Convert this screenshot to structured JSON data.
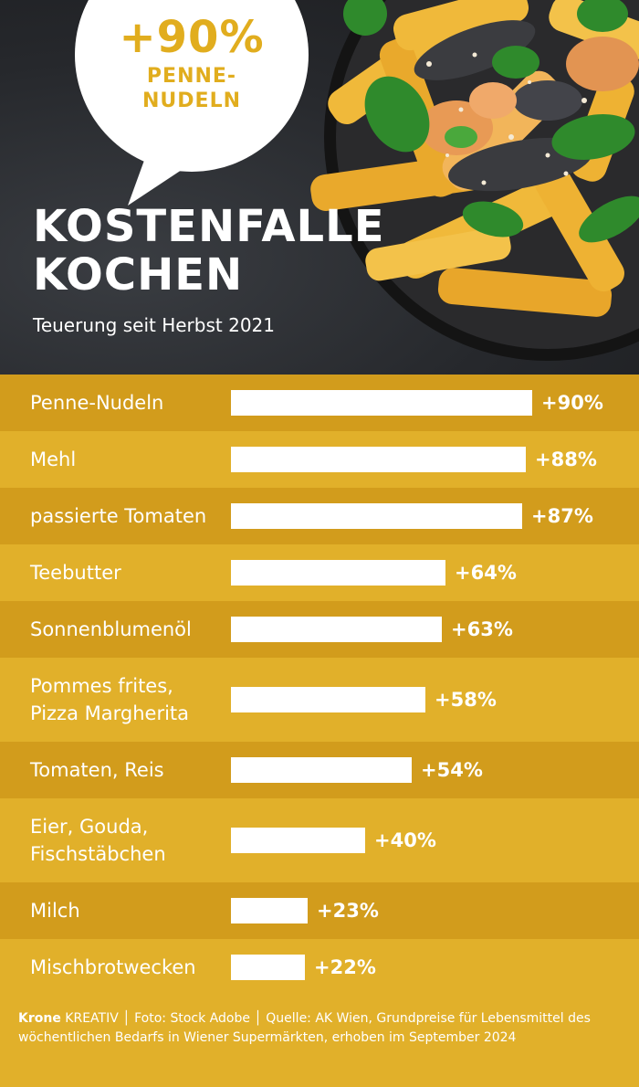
{
  "bubble": {
    "value": "+90%",
    "label_line1": "PENNE-",
    "label_line2": "NUDELN"
  },
  "title": {
    "line1": "KOSTENFALLE",
    "line2": "KOCHEN"
  },
  "subtitle": "Teuerung seit Herbst 2021",
  "chart_data": {
    "type": "bar",
    "orientation": "horizontal",
    "title": "KOSTENFALLE KOCHEN",
    "subtitle": "Teuerung seit Herbst 2021",
    "unit": "%",
    "categories": [
      "Penne-Nudeln",
      "Mehl",
      "passierte Tomaten",
      "Teebutter",
      "Sonnenblumenöl",
      "Pommes frites,\nPizza Margherita",
      "Tomaten, Reis",
      "Eier, Gouda,\nFischstäbchen",
      "Milch",
      "Mischbrotwecken"
    ],
    "values": [
      90,
      88,
      87,
      64,
      63,
      58,
      54,
      40,
      23,
      22
    ],
    "value_labels": [
      "+90%",
      "+88%",
      "+87%",
      "+64%",
      "+63%",
      "+58%",
      "+54%",
      "+40%",
      "+23%",
      "+22%"
    ],
    "colors": {
      "bar": "#ffffff",
      "band_dark": "#d29c1c",
      "band_light": "#e1b02a",
      "accent": "#e1ad1e"
    }
  },
  "footer": {
    "brand": "Krone",
    "rest": "KREATIV │ Foto: Stock Adobe │ Quelle: AK Wien, Grundpreise für Lebensmittel des wöchentlichen Bedarfs in Wiener Supermärkten, erhoben im September 2024"
  }
}
